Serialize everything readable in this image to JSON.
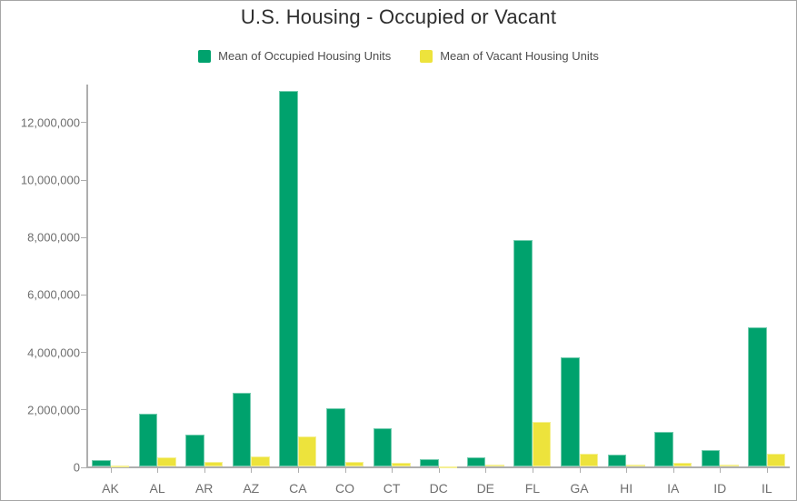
{
  "chart_data": {
    "type": "bar",
    "title": "U.S. Housing - Occupied or Vacant",
    "categories": [
      "AK",
      "AL",
      "AR",
      "AZ",
      "CA",
      "CO",
      "CT",
      "DC",
      "DE",
      "FL",
      "GA",
      "HI",
      "IA",
      "ID",
      "IL"
    ],
    "series": [
      {
        "name": "Mean of Occupied Housing Units",
        "color": "#00A26D",
        "values": [
          250000,
          1840000,
          1130000,
          2570000,
          13100000,
          2050000,
          1340000,
          260000,
          330000,
          7900000,
          3800000,
          420000,
          1230000,
          590000,
          4850000
        ]
      },
      {
        "name": "Mean of Vacant Housing Units",
        "color": "#EDE33C",
        "values": [
          60000,
          340000,
          160000,
          370000,
          1050000,
          180000,
          130000,
          30000,
          80000,
          1580000,
          460000,
          80000,
          130000,
          80000,
          470000
        ]
      }
    ],
    "xlabel": "",
    "ylabel": "",
    "y_axis": {
      "min": 0,
      "max": 12000000,
      "tick_step": 2000000,
      "tick_labels": [
        "0",
        "2,000,000",
        "4,000,000",
        "6,000,000",
        "8,000,000",
        "10,000,000",
        "12,000,000"
      ]
    },
    "legend_position": "top-center",
    "grid": false,
    "colors": {
      "title_text": "#2e2e2e",
      "legend_text": "#4d4d4d",
      "axis_text": "#6e6e6e",
      "axis_line": "#aeaeae"
    }
  }
}
